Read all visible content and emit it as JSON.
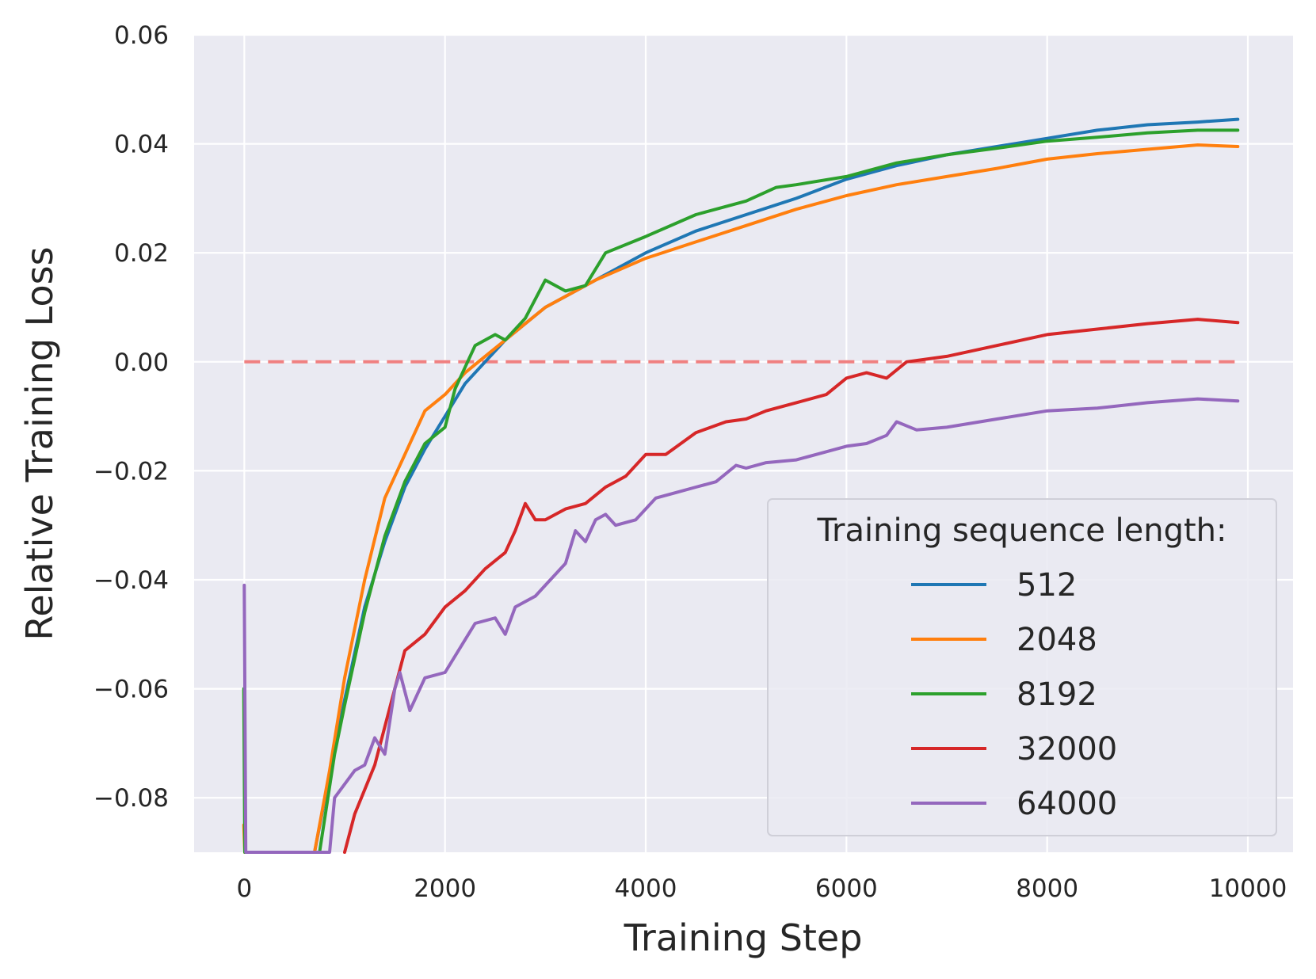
{
  "chart_data": {
    "type": "line",
    "title": "",
    "xlabel": "Training Step",
    "ylabel": "Relative Training Loss",
    "xlim": [
      -500,
      10450
    ],
    "ylim": [
      -0.09,
      0.06
    ],
    "xticks": [
      0,
      2000,
      4000,
      6000,
      8000,
      10000
    ],
    "xtick_labels": [
      "0",
      "2000",
      "4000",
      "6000",
      "8000",
      "10000"
    ],
    "yticks": [
      0.06,
      0.04,
      0.02,
      0.0,
      -0.02,
      -0.04,
      -0.06,
      -0.08
    ],
    "ytick_labels": [
      "0.06",
      "0.04",
      "0.02",
      "0.00",
      "−0.02",
      "−0.04",
      "−0.06",
      "−0.08"
    ],
    "grid": true,
    "reference_line": {
      "y": 0.0,
      "x_range": [
        0,
        9900
      ],
      "style": "dashed",
      "color": "#f08080"
    },
    "legend": {
      "title": "Training sequence length:",
      "position": "lower-right"
    },
    "series": [
      {
        "name": "512",
        "color": "#1f77b4",
        "points": [
          [
            700,
            -0.09
          ],
          [
            900,
            -0.071
          ],
          [
            1000,
            -0.062
          ],
          [
            1200,
            -0.045
          ],
          [
            1400,
            -0.033
          ],
          [
            1600,
            -0.023
          ],
          [
            1800,
            -0.016
          ],
          [
            2000,
            -0.01
          ],
          [
            2200,
            -0.004
          ],
          [
            2400,
            0.0
          ],
          [
            2600,
            0.004
          ],
          [
            2800,
            0.007
          ],
          [
            3000,
            0.01
          ],
          [
            3200,
            0.012
          ],
          [
            3500,
            0.015
          ],
          [
            4000,
            0.02
          ],
          [
            4500,
            0.024
          ],
          [
            5000,
            0.027
          ],
          [
            5500,
            0.03
          ],
          [
            6000,
            0.0335
          ],
          [
            6500,
            0.036
          ],
          [
            7000,
            0.038
          ],
          [
            7500,
            0.0395
          ],
          [
            8000,
            0.041
          ],
          [
            8500,
            0.0425
          ],
          [
            9000,
            0.0435
          ],
          [
            9500,
            0.044
          ],
          [
            9900,
            0.0445
          ]
        ]
      },
      {
        "name": "2048",
        "color": "#ff7f0e",
        "points": [
          [
            -5,
            -0.085
          ],
          [
            5,
            -0.09
          ],
          [
            700,
            -0.09
          ],
          [
            850,
            -0.075
          ],
          [
            1000,
            -0.058
          ],
          [
            1200,
            -0.04
          ],
          [
            1400,
            -0.025
          ],
          [
            1600,
            -0.017
          ],
          [
            1800,
            -0.009
          ],
          [
            2000,
            -0.006
          ],
          [
            2200,
            -0.002
          ],
          [
            2400,
            0.001
          ],
          [
            2600,
            0.004
          ],
          [
            2800,
            0.007
          ],
          [
            3000,
            0.01
          ],
          [
            3200,
            0.012
          ],
          [
            3500,
            0.015
          ],
          [
            4000,
            0.019
          ],
          [
            4500,
            0.022
          ],
          [
            5000,
            0.025
          ],
          [
            5500,
            0.028
          ],
          [
            6000,
            0.0305
          ],
          [
            6500,
            0.0325
          ],
          [
            7000,
            0.034
          ],
          [
            7500,
            0.0355
          ],
          [
            8000,
            0.0372
          ],
          [
            8500,
            0.0382
          ],
          [
            9000,
            0.039
          ],
          [
            9500,
            0.0398
          ],
          [
            9900,
            0.0395
          ]
        ]
      },
      {
        "name": "8192",
        "color": "#2ca02c",
        "points": [
          [
            -5,
            -0.06
          ],
          [
            5,
            -0.09
          ],
          [
            750,
            -0.09
          ],
          [
            900,
            -0.072
          ],
          [
            1000,
            -0.063
          ],
          [
            1200,
            -0.046
          ],
          [
            1400,
            -0.032
          ],
          [
            1600,
            -0.022
          ],
          [
            1800,
            -0.015
          ],
          [
            2000,
            -0.012
          ],
          [
            2100,
            -0.005
          ],
          [
            2200,
            -0.001
          ],
          [
            2300,
            0.003
          ],
          [
            2500,
            0.005
          ],
          [
            2600,
            0.004
          ],
          [
            2800,
            0.008
          ],
          [
            3000,
            0.015
          ],
          [
            3200,
            0.013
          ],
          [
            3400,
            0.014
          ],
          [
            3600,
            0.02
          ],
          [
            4000,
            0.023
          ],
          [
            4500,
            0.027
          ],
          [
            5000,
            0.0295
          ],
          [
            5300,
            0.032
          ],
          [
            5500,
            0.0325
          ],
          [
            6000,
            0.034
          ],
          [
            6500,
            0.0365
          ],
          [
            7000,
            0.038
          ],
          [
            7500,
            0.0392
          ],
          [
            8000,
            0.0405
          ],
          [
            8500,
            0.0412
          ],
          [
            9000,
            0.042
          ],
          [
            9500,
            0.0425
          ],
          [
            9900,
            0.0425
          ]
        ]
      },
      {
        "name": "32000",
        "color": "#d62728",
        "points": [
          [
            1000,
            -0.09
          ],
          [
            1100,
            -0.083
          ],
          [
            1300,
            -0.074
          ],
          [
            1500,
            -0.06
          ],
          [
            1600,
            -0.053
          ],
          [
            1800,
            -0.05
          ],
          [
            2000,
            -0.045
          ],
          [
            2200,
            -0.042
          ],
          [
            2400,
            -0.038
          ],
          [
            2600,
            -0.035
          ],
          [
            2700,
            -0.031
          ],
          [
            2800,
            -0.026
          ],
          [
            2900,
            -0.029
          ],
          [
            3000,
            -0.029
          ],
          [
            3200,
            -0.027
          ],
          [
            3400,
            -0.026
          ],
          [
            3600,
            -0.023
          ],
          [
            3800,
            -0.021
          ],
          [
            4000,
            -0.017
          ],
          [
            4200,
            -0.017
          ],
          [
            4500,
            -0.013
          ],
          [
            4800,
            -0.011
          ],
          [
            5000,
            -0.0105
          ],
          [
            5200,
            -0.009
          ],
          [
            5500,
            -0.0075
          ],
          [
            5800,
            -0.006
          ],
          [
            6000,
            -0.003
          ],
          [
            6200,
            -0.002
          ],
          [
            6400,
            -0.003
          ],
          [
            6600,
            0.0
          ],
          [
            7000,
            0.001
          ],
          [
            7500,
            0.003
          ],
          [
            8000,
            0.005
          ],
          [
            8500,
            0.006
          ],
          [
            9000,
            0.007
          ],
          [
            9500,
            0.0078
          ],
          [
            9900,
            0.0072
          ]
        ]
      },
      {
        "name": "64000",
        "color": "#9467bd",
        "points": [
          [
            0,
            -0.041
          ],
          [
            15,
            -0.09
          ],
          [
            850,
            -0.09
          ],
          [
            900,
            -0.08
          ],
          [
            1100,
            -0.075
          ],
          [
            1200,
            -0.074
          ],
          [
            1300,
            -0.069
          ],
          [
            1400,
            -0.072
          ],
          [
            1500,
            -0.06
          ],
          [
            1550,
            -0.057
          ],
          [
            1650,
            -0.064
          ],
          [
            1800,
            -0.058
          ],
          [
            2000,
            -0.057
          ],
          [
            2200,
            -0.051
          ],
          [
            2300,
            -0.048
          ],
          [
            2500,
            -0.047
          ],
          [
            2600,
            -0.05
          ],
          [
            2700,
            -0.045
          ],
          [
            2900,
            -0.043
          ],
          [
            3000,
            -0.041
          ],
          [
            3200,
            -0.037
          ],
          [
            3300,
            -0.031
          ],
          [
            3400,
            -0.033
          ],
          [
            3500,
            -0.029
          ],
          [
            3600,
            -0.028
          ],
          [
            3700,
            -0.03
          ],
          [
            3900,
            -0.029
          ],
          [
            4100,
            -0.025
          ],
          [
            4300,
            -0.024
          ],
          [
            4500,
            -0.023
          ],
          [
            4700,
            -0.022
          ],
          [
            4900,
            -0.019
          ],
          [
            5000,
            -0.0195
          ],
          [
            5200,
            -0.0185
          ],
          [
            5500,
            -0.018
          ],
          [
            5800,
            -0.0165
          ],
          [
            6000,
            -0.0155
          ],
          [
            6200,
            -0.015
          ],
          [
            6400,
            -0.0135
          ],
          [
            6500,
            -0.011
          ],
          [
            6700,
            -0.0125
          ],
          [
            7000,
            -0.012
          ],
          [
            7500,
            -0.0105
          ],
          [
            8000,
            -0.009
          ],
          [
            8500,
            -0.0085
          ],
          [
            9000,
            -0.0075
          ],
          [
            9500,
            -0.0068
          ],
          [
            9900,
            -0.0072
          ]
        ]
      }
    ]
  }
}
